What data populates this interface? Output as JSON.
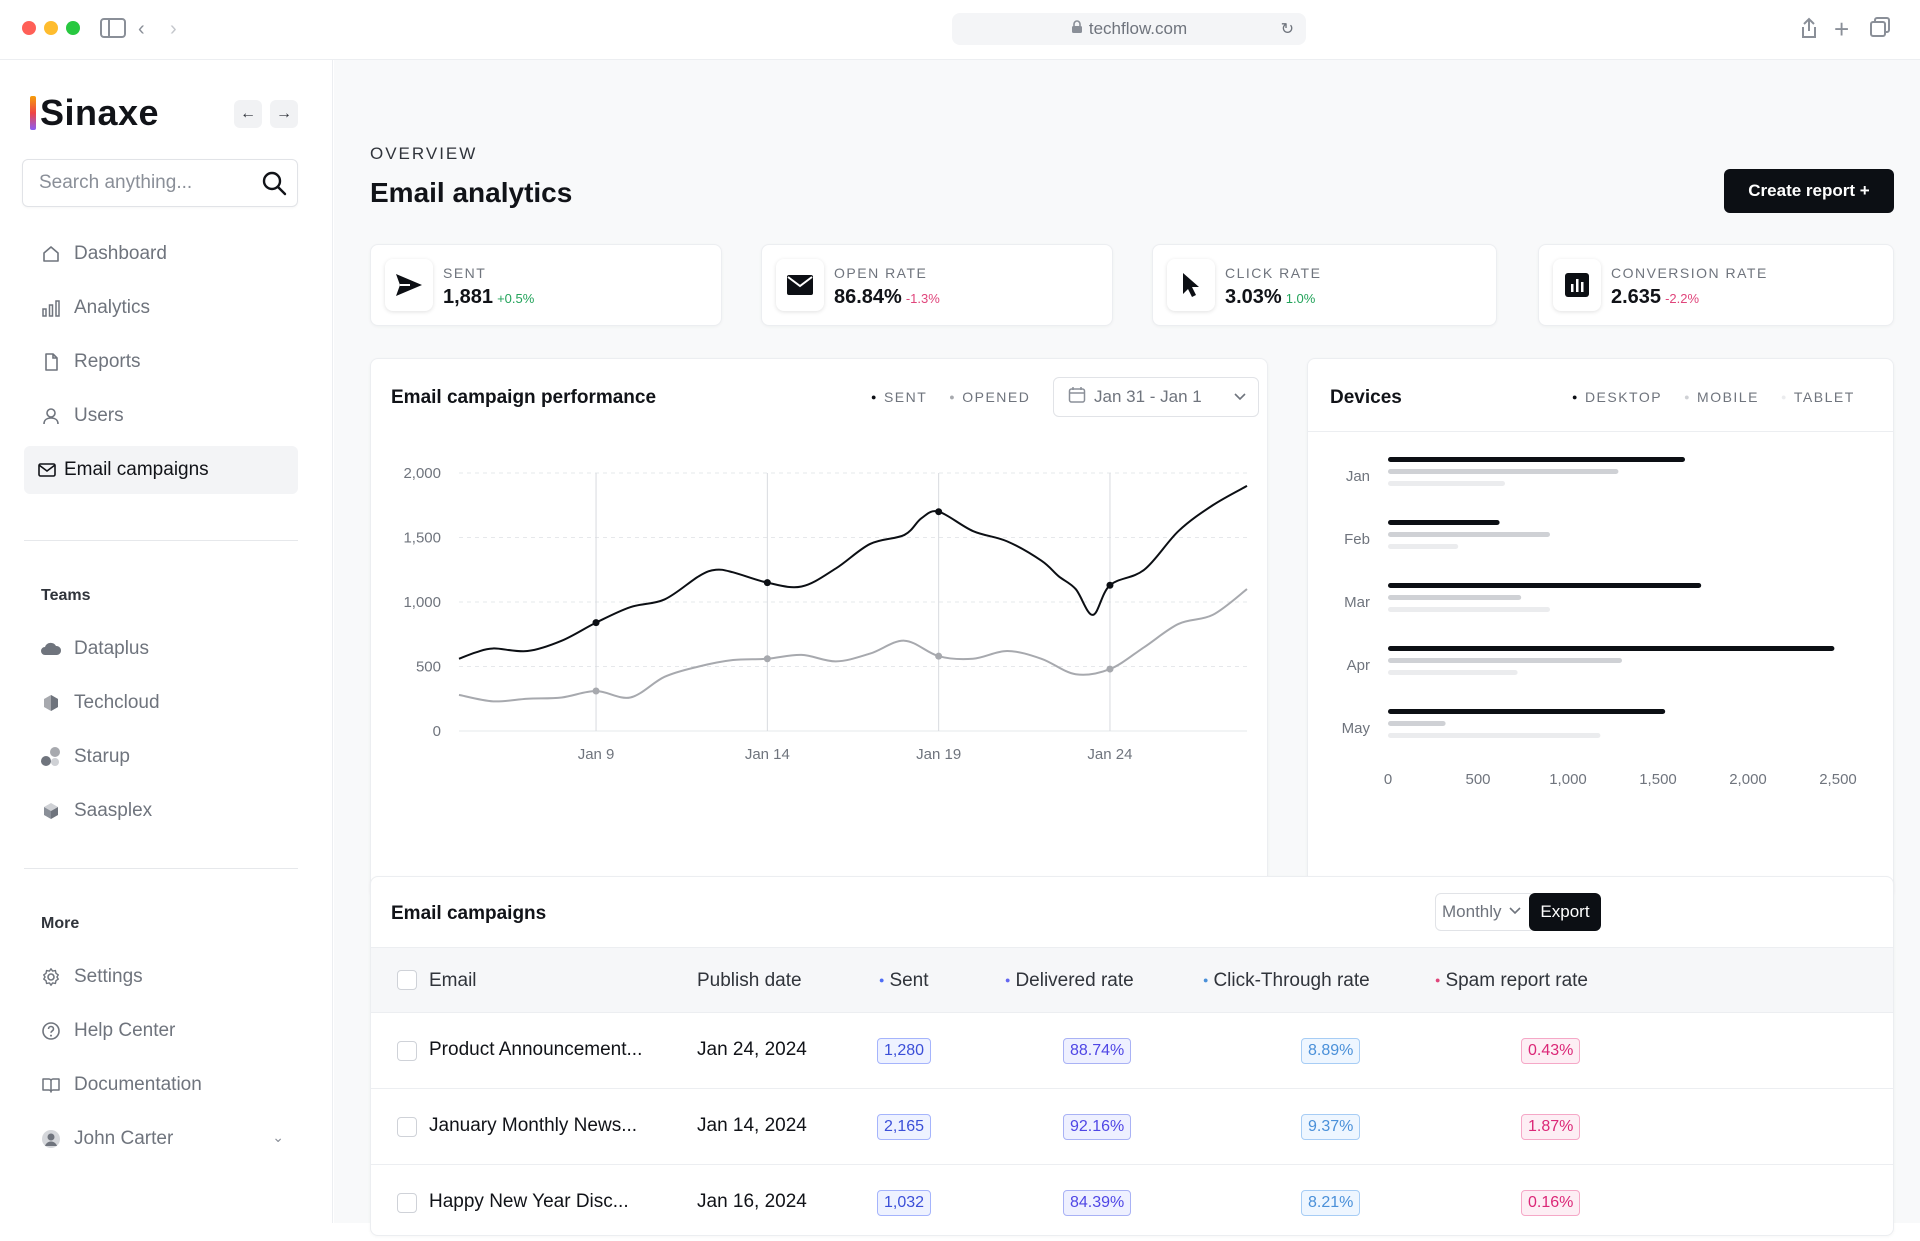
{
  "browser": {
    "url": "techflow.com",
    "traffic_colors": [
      "#ff5f57",
      "#febc2e",
      "#28c840"
    ]
  },
  "sidebar": {
    "brand": "Sinaxe",
    "search_placeholder": "Search anything...",
    "nav": [
      {
        "label": "Dashboard",
        "icon": "home-icon"
      },
      {
        "label": "Analytics",
        "icon": "bar-chart-icon"
      },
      {
        "label": "Reports",
        "icon": "document-icon"
      },
      {
        "label": "Users",
        "icon": "user-icon"
      },
      {
        "label": "Email campaigns",
        "icon": "mail-icon",
        "active": true
      }
    ],
    "teams_label": "Teams",
    "teams": [
      {
        "label": "Dataplus",
        "icon": "cloud-icon"
      },
      {
        "label": "Techcloud",
        "icon": "cube-icon"
      },
      {
        "label": "Starup",
        "icon": "dots-icon"
      },
      {
        "label": "Saasplex",
        "icon": "box-icon"
      }
    ],
    "more_label": "More",
    "more": [
      {
        "label": "Settings",
        "icon": "gear-icon"
      },
      {
        "label": "Help Center",
        "icon": "help-icon"
      },
      {
        "label": "Documentation",
        "icon": "book-icon"
      }
    ],
    "user": {
      "name": "John Carter"
    }
  },
  "header": {
    "overline": "OVERVIEW",
    "title": "Email analytics",
    "create_button": "Create report +"
  },
  "kpis": [
    {
      "label": "SENT",
      "value": "1,881",
      "delta": "+0.5%",
      "trend": "up",
      "icon": "send-icon"
    },
    {
      "label": "OPEN RATE",
      "value": "86.84%",
      "delta": "-1.3%",
      "trend": "down",
      "icon": "envelope-icon"
    },
    {
      "label": "CLICK RATE",
      "value": "3.03%",
      "delta": "1.0%",
      "trend": "up",
      "icon": "cursor-icon"
    },
    {
      "label": "CONVERSION RATE",
      "value": "2.635",
      "delta": "-2.2%",
      "trend": "down",
      "icon": "chart-box-icon"
    }
  ],
  "colors": {
    "up": "#22a35a",
    "down": "#e0457b",
    "primary": "#0c0f14",
    "muted": "#a7a9ae"
  },
  "campaign_chart": {
    "title": "Email campaign performance",
    "legend": [
      "SENT",
      "OPENED"
    ],
    "date_range": "Jan 31 - Jan 1"
  },
  "devices_chart": {
    "title": "Devices",
    "legend": [
      "DESKTOP",
      "MOBILE",
      "TABLET"
    ]
  },
  "chart_data": [
    {
      "type": "line",
      "title": "Email campaign performance",
      "x_ticks": [
        "Jan 9",
        "Jan 14",
        "Jan 19",
        "Jan 24"
      ],
      "y_ticks": [
        "0",
        "500",
        "1,000",
        "1,500",
        "2,000"
      ],
      "ylim": [
        0,
        2000
      ],
      "xlim": [
        5,
        28
      ],
      "grid": true,
      "legend_position": "top-right",
      "series": [
        {
          "name": "SENT",
          "color": "#0c0f14",
          "x": [
            5,
            5.5,
            6,
            7,
            8,
            9,
            10,
            11,
            12,
            12.5,
            13,
            14,
            15,
            16,
            17,
            18,
            18.5,
            19,
            20,
            21,
            22,
            22.5,
            23,
            23.5,
            24,
            25,
            26,
            27,
            28
          ],
          "y": [
            560,
            610,
            640,
            620,
            700,
            840,
            960,
            1020,
            1200,
            1250,
            1230,
            1150,
            1120,
            1260,
            1450,
            1520,
            1650,
            1700,
            1550,
            1470,
            1320,
            1200,
            1100,
            900,
            1130,
            1250,
            1550,
            1750,
            1900
          ]
        },
        {
          "name": "OPENED",
          "color": "#a7a9ae",
          "x": [
            5,
            6,
            7,
            8,
            9,
            10,
            11,
            12,
            13,
            14,
            15,
            16,
            17,
            18,
            19,
            20,
            21,
            22,
            23,
            24,
            25,
            26,
            27,
            28
          ],
          "y": [
            280,
            230,
            250,
            260,
            310,
            260,
            420,
            500,
            550,
            560,
            590,
            540,
            600,
            700,
            580,
            560,
            620,
            560,
            440,
            480,
            650,
            830,
            900,
            1100
          ]
        }
      ]
    },
    {
      "type": "bar",
      "orientation": "horizontal",
      "title": "Devices",
      "categories": [
        "Jan",
        "Feb",
        "Mar",
        "Apr",
        "May"
      ],
      "x_ticks": [
        "0",
        "500",
        "1,000",
        "1,500",
        "2,000",
        "2,500"
      ],
      "xlim": [
        0,
        2500
      ],
      "legend_position": "top-right",
      "series": [
        {
          "name": "DESKTOP",
          "color": "#0c0f14",
          "values": [
            1650,
            620,
            1740,
            2480,
            1540
          ]
        },
        {
          "name": "MOBILE",
          "color": "#cfd1d5",
          "values": [
            1280,
            900,
            740,
            1300,
            320
          ]
        },
        {
          "name": "TABLET",
          "color": "#ebecee",
          "values": [
            650,
            390,
            900,
            720,
            1180
          ]
        }
      ]
    }
  ],
  "campaigns_table": {
    "title": "Email campaigns",
    "period": "Monthly",
    "export_button": "Export",
    "columns": [
      {
        "label": "Email"
      },
      {
        "label": "Publish date"
      },
      {
        "label": "Sent",
        "dot_color": "#4f6df5"
      },
      {
        "label": "Delivered rate",
        "dot_color": "#6366f1"
      },
      {
        "label": "Click-Through rate",
        "dot_color": "#4a90d9"
      },
      {
        "label": "Spam report rate",
        "dot_color": "#e0457b"
      }
    ],
    "rows": [
      {
        "email": "Product Announcement...",
        "date": "Jan 24, 2024",
        "sent": "1,280",
        "delivered": "88.74%",
        "ctr": "8.89%",
        "spam": "0.43%"
      },
      {
        "email": "January Monthly News...",
        "date": "Jan 14, 2024",
        "sent": "2,165",
        "delivered": "92.16%",
        "ctr": "9.37%",
        "spam": "1.87%"
      },
      {
        "email": "Happy New Year Disc...",
        "date": "Jan 16, 2024",
        "sent": "1,032",
        "delivered": "84.39%",
        "ctr": "8.21%",
        "spam": "0.16%"
      }
    ]
  }
}
